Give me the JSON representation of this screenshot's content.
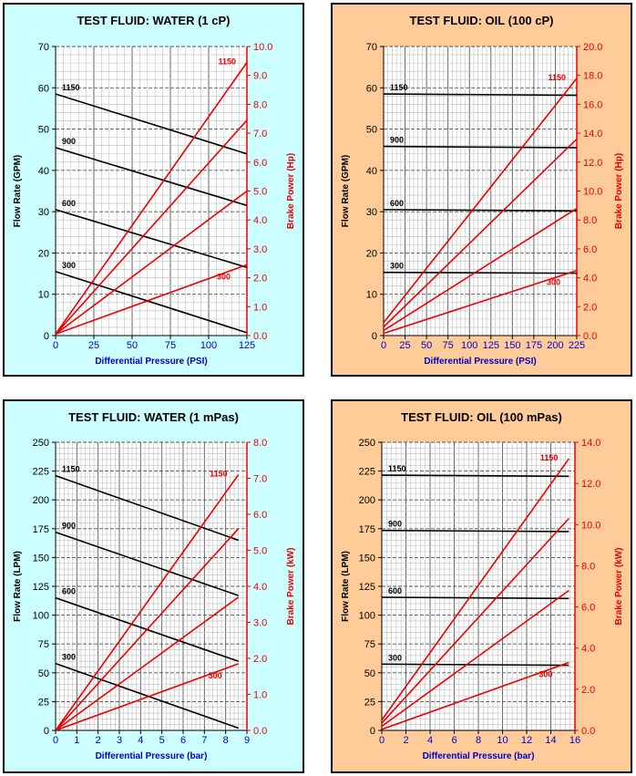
{
  "colors": {
    "water_bg": "#ccffff",
    "oil_bg": "#ffcc99",
    "flow_line": "#000000",
    "power_line": "#ee0000",
    "xlabel_color": "#0000cc",
    "power_axis_color": "#ee0000"
  },
  "chart_data": [
    {
      "type": "line",
      "title": "TEST FLUID:  WATER (1 cP)",
      "xlabel": "Differential Pressure (PSI)",
      "ylabel": "Flow Rate (GPM)",
      "y2label": "Brake Power (Hp)",
      "xlim": [
        0,
        125
      ],
      "ylim": [
        0,
        70
      ],
      "y2lim": [
        0,
        10.0
      ],
      "x_ticks": [
        "0",
        "25",
        "50",
        "75",
        "100",
        "125"
      ],
      "y_ticks": [
        "0",
        "10",
        "20",
        "30",
        "40",
        "50",
        "60",
        "70"
      ],
      "y2_ticks": [
        "0.0",
        "1.0",
        "2.0",
        "3.0",
        "4.0",
        "5.0",
        "6.0",
        "7.0",
        "8.0",
        "9.0",
        "10.0"
      ],
      "flow_series": [
        {
          "name": "1150",
          "x": [
            0,
            125
          ],
          "y": [
            58.5,
            44.0
          ]
        },
        {
          "name": "900",
          "x": [
            0,
            125
          ],
          "y": [
            45.5,
            31.5
          ]
        },
        {
          "name": "600",
          "x": [
            0,
            125
          ],
          "y": [
            30.5,
            16.5
          ]
        },
        {
          "name": "300",
          "x": [
            0,
            125
          ],
          "y": [
            15.5,
            0.7
          ]
        }
      ],
      "power_series": [
        {
          "name": "1150",
          "x": [
            0,
            125
          ],
          "y": [
            0.05,
            9.45
          ]
        },
        {
          "name": "900",
          "x": [
            0,
            125
          ],
          "y": [
            0.05,
            7.45
          ]
        },
        {
          "name": "600",
          "x": [
            0,
            125
          ],
          "y": [
            0.05,
            5.0
          ]
        },
        {
          "name": "300",
          "x": [
            0,
            125
          ],
          "y": [
            0.05,
            2.45
          ]
        }
      ],
      "power_labels": {
        "top": "1150",
        "bottom": "300"
      }
    },
    {
      "type": "line",
      "title": "TEST FLUID:  OIL (100 cP)",
      "xlabel": "Differential Pressure (PSI)",
      "ylabel": "Flow Rate (GPM)",
      "y2label": "Brake Power (Hp)",
      "xlim": [
        0,
        225
      ],
      "ylim": [
        0,
        70
      ],
      "y2lim": [
        0,
        20.0
      ],
      "x_ticks": [
        "0",
        "25",
        "50",
        "75",
        "100",
        "125",
        "150",
        "175",
        "200",
        "225"
      ],
      "y_ticks": [
        "0",
        "10",
        "20",
        "30",
        "40",
        "50",
        "60",
        "70"
      ],
      "y2_ticks": [
        "0.0",
        "2.0",
        "4.0",
        "6.0",
        "8.0",
        "10.0",
        "12.0",
        "14.0",
        "16.0",
        "18.0",
        "20.0"
      ],
      "flow_series": [
        {
          "name": "1150",
          "x": [
            0,
            225
          ],
          "y": [
            58.5,
            58.2
          ]
        },
        {
          "name": "900",
          "x": [
            0,
            225
          ],
          "y": [
            45.8,
            45.5
          ]
        },
        {
          "name": "600",
          "x": [
            0,
            225
          ],
          "y": [
            30.5,
            30.2
          ]
        },
        {
          "name": "300",
          "x": [
            0,
            225
          ],
          "y": [
            15.3,
            15.1
          ]
        }
      ],
      "power_series": [
        {
          "name": "1150",
          "x": [
            0,
            225
          ],
          "y": [
            0.9,
            17.8
          ]
        },
        {
          "name": "900",
          "x": [
            0,
            225
          ],
          "y": [
            0.6,
            13.6
          ]
        },
        {
          "name": "600",
          "x": [
            0,
            225
          ],
          "y": [
            0.35,
            8.8
          ]
        },
        {
          "name": "300",
          "x": [
            0,
            225
          ],
          "y": [
            0.15,
            4.5
          ]
        }
      ],
      "power_labels": {
        "top": "1150",
        "bottom": "300"
      }
    },
    {
      "type": "line",
      "title": "TEST FLUID:  WATER (1 mPas)",
      "xlabel": "Differential Pressure (bar)",
      "ylabel": "Flow Rate (LPM)",
      "y2label": "Brake Power (kW)",
      "xlim": [
        0,
        9
      ],
      "ylim": [
        0,
        250
      ],
      "y2lim": [
        0,
        8.0
      ],
      "x_ticks": [
        "0",
        "1",
        "2",
        "3",
        "4",
        "5",
        "6",
        "7",
        "8",
        "9"
      ],
      "y_ticks": [
        "0",
        "25",
        "50",
        "75",
        "100",
        "125",
        "150",
        "175",
        "200",
        "225",
        "250"
      ],
      "y2_ticks": [
        "0.0",
        "1.0",
        "2.0",
        "3.0",
        "4.0",
        "5.0",
        "6.0",
        "7.0",
        "8.0"
      ],
      "flow_series": [
        {
          "name": "1150",
          "x": [
            0,
            8.6
          ],
          "y": [
            221,
            165
          ]
        },
        {
          "name": "900",
          "x": [
            0,
            8.6
          ],
          "y": [
            172,
            117
          ]
        },
        {
          "name": "600",
          "x": [
            0,
            8.6
          ],
          "y": [
            115,
            60
          ]
        },
        {
          "name": "300",
          "x": [
            0,
            8.6
          ],
          "y": [
            58,
            2
          ]
        }
      ],
      "power_series": [
        {
          "name": "1150",
          "x": [
            0,
            8.6
          ],
          "y": [
            0.0,
            7.1
          ]
        },
        {
          "name": "900",
          "x": [
            0,
            8.6
          ],
          "y": [
            0.0,
            5.6
          ]
        },
        {
          "name": "600",
          "x": [
            0,
            8.6
          ],
          "y": [
            0.0,
            3.7
          ]
        },
        {
          "name": "300",
          "x": [
            0,
            8.6
          ],
          "y": [
            0.0,
            1.85
          ]
        }
      ],
      "power_labels": {
        "top": "1150",
        "bottom": "300"
      }
    },
    {
      "type": "line",
      "title": "TEST FLUID:  OIL (100 mPas)",
      "xlabel": "Differential Pressure (bar)",
      "ylabel": "Flow Rate (LPM)",
      "y2label": "Brake Power (kW)",
      "xlim": [
        0,
        16
      ],
      "ylim": [
        0,
        250
      ],
      "y2lim": [
        0,
        14.0
      ],
      "x_ticks": [
        "0",
        "2",
        "4",
        "6",
        "8",
        "10",
        "12",
        "14",
        "16"
      ],
      "y_ticks": [
        "0",
        "25",
        "50",
        "75",
        "100",
        "125",
        "150",
        "175",
        "200",
        "225",
        "250"
      ],
      "y2_ticks": [
        "0.0",
        "2.0",
        "4.0",
        "6.0",
        "8.0",
        "10.0",
        "12.0",
        "14.0"
      ],
      "flow_series": [
        {
          "name": "1150",
          "x": [
            0,
            15.5
          ],
          "y": [
            221.5,
            220.5
          ]
        },
        {
          "name": "900",
          "x": [
            0,
            15.5
          ],
          "y": [
            173.5,
            172.5
          ]
        },
        {
          "name": "600",
          "x": [
            0,
            15.5
          ],
          "y": [
            115.5,
            114.5
          ]
        },
        {
          "name": "300",
          "x": [
            0,
            15.5
          ],
          "y": [
            57.5,
            56.5
          ]
        }
      ],
      "power_series": [
        {
          "name": "1150",
          "x": [
            0,
            15.5
          ],
          "y": [
            0.5,
            13.2
          ]
        },
        {
          "name": "900",
          "x": [
            0,
            15.5
          ],
          "y": [
            0.35,
            10.3
          ]
        },
        {
          "name": "600",
          "x": [
            0,
            15.5
          ],
          "y": [
            0.2,
            6.8
          ]
        },
        {
          "name": "300",
          "x": [
            0,
            15.5
          ],
          "y": [
            0.05,
            3.3
          ]
        }
      ],
      "power_labels": {
        "top": "1150",
        "bottom": "300"
      }
    }
  ]
}
